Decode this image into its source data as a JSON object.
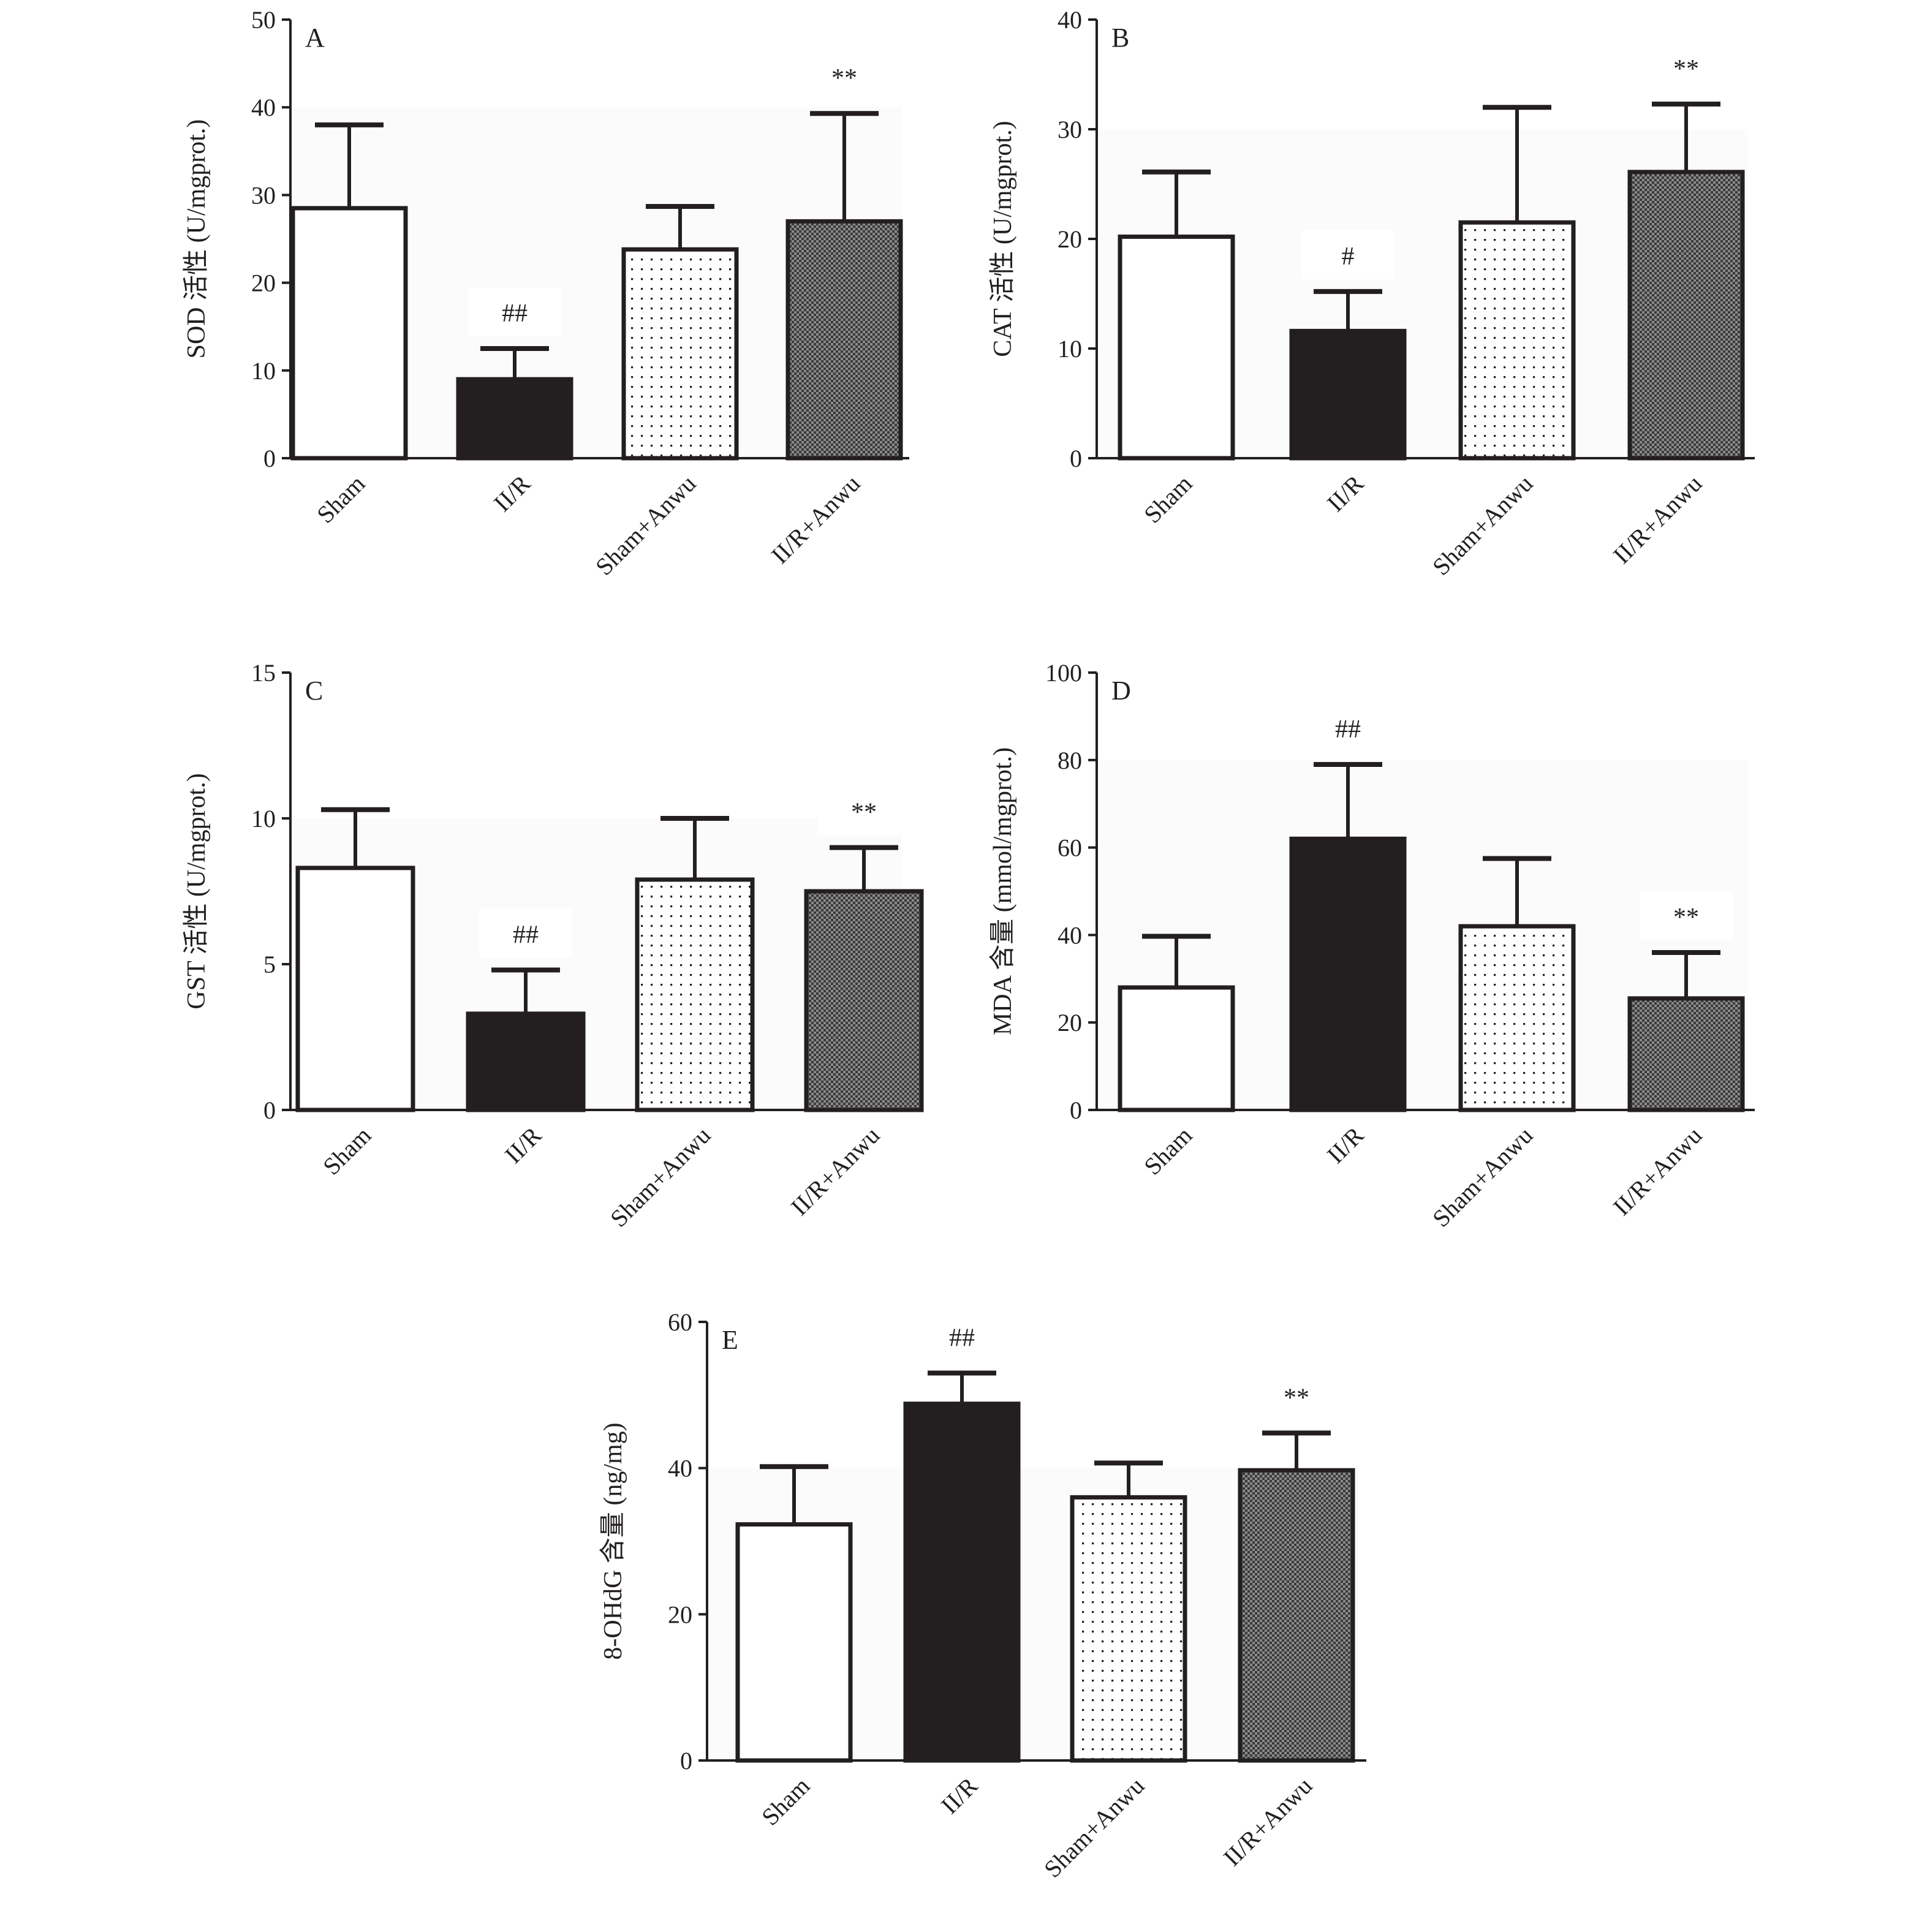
{
  "chart_data": [
    {
      "type": "bar",
      "panel": "A",
      "ylabel": "SOD 活性 (U/mgprot.)",
      "categories": [
        "Sham",
        "II/R",
        "Sham+Anwu",
        "II/R+Anwu"
      ],
      "values": [
        28.5,
        9.0,
        23.8,
        27.0
      ],
      "error_upper": [
        38.0,
        12.5,
        28.7,
        39.3
      ],
      "annotations": [
        "",
        "##",
        "",
        "**"
      ],
      "ylim": [
        0,
        50
      ],
      "yticks": [
        0,
        10,
        20,
        30,
        40,
        50
      ]
    },
    {
      "type": "bar",
      "panel": "B",
      "ylabel": "CAT 活性 (U/mgprot.)",
      "categories": [
        "Sham",
        "II/R",
        "Sham+Anwu",
        "II/R+Anwu"
      ],
      "values": [
        20.2,
        11.6,
        21.5,
        26.1
      ],
      "error_upper": [
        26.1,
        15.2,
        32.0,
        32.3
      ],
      "annotations": [
        "",
        "#",
        "",
        "**"
      ],
      "ylim": [
        0,
        40
      ],
      "yticks": [
        0,
        10,
        20,
        30,
        40
      ]
    },
    {
      "type": "bar",
      "panel": "C",
      "ylabel": "GST 活性 (U/mgprot.)",
      "categories": [
        "Sham",
        "II/R",
        "Sham+Anwu",
        "II/R+Anwu"
      ],
      "values": [
        8.3,
        3.3,
        7.9,
        7.5
      ],
      "error_upper": [
        10.3,
        4.8,
        10.0,
        9.0
      ],
      "annotations": [
        "",
        "##",
        "",
        "**"
      ],
      "ylim": [
        0,
        15
      ],
      "yticks": [
        0,
        5,
        10,
        15
      ]
    },
    {
      "type": "bar",
      "panel": "D",
      "ylabel": "MDA 含量 (mmol/mgprot.)",
      "categories": [
        "Sham",
        "II/R",
        "Sham+Anwu",
        "II/R+Anwu"
      ],
      "values": [
        28.0,
        62.0,
        42.0,
        25.5
      ],
      "error_upper": [
        39.7,
        79.0,
        57.5,
        36.0
      ],
      "annotations": [
        "",
        "##",
        "",
        "**"
      ],
      "ylim": [
        0,
        100
      ],
      "yticks": [
        0,
        20,
        40,
        60,
        80,
        100
      ]
    },
    {
      "type": "bar",
      "panel": "E",
      "ylabel": "8-OHdG 含量 (ng/mg)",
      "categories": [
        "Sham",
        "II/R",
        "Sham+Anwu",
        "II/R+Anwu"
      ],
      "values": [
        32.3,
        48.8,
        36.0,
        39.7
      ],
      "error_upper": [
        40.2,
        53.0,
        40.7,
        44.8
      ],
      "annotations": [
        "",
        "##",
        "",
        "**"
      ],
      "ylim": [
        0,
        60
      ],
      "yticks": [
        0,
        20,
        40,
        60
      ]
    }
  ],
  "colors": {
    "axis": "#231f20",
    "sham": "#ffffff",
    "iir": "#231f20",
    "sham_anwu": "dots",
    "iir_anwu": "#6d6d6d-checker"
  }
}
